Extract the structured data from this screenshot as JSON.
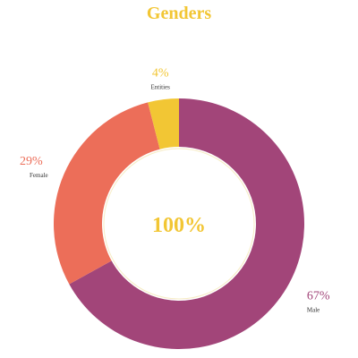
{
  "chart_data": {
    "type": "pie",
    "variant": "donut",
    "title": "Genders",
    "center_label": "100%",
    "slices": [
      {
        "name": "Male",
        "value": 67,
        "label": "67%",
        "color": "#a24579"
      },
      {
        "name": "Female",
        "value": 29,
        "label": "29%",
        "color": "#ec6e59"
      },
      {
        "name": "Entities",
        "value": 4,
        "label": "4%",
        "color": "#f2c634"
      }
    ],
    "title_color": "#f2c634",
    "center_color": "#f2c634",
    "legend": "none"
  }
}
